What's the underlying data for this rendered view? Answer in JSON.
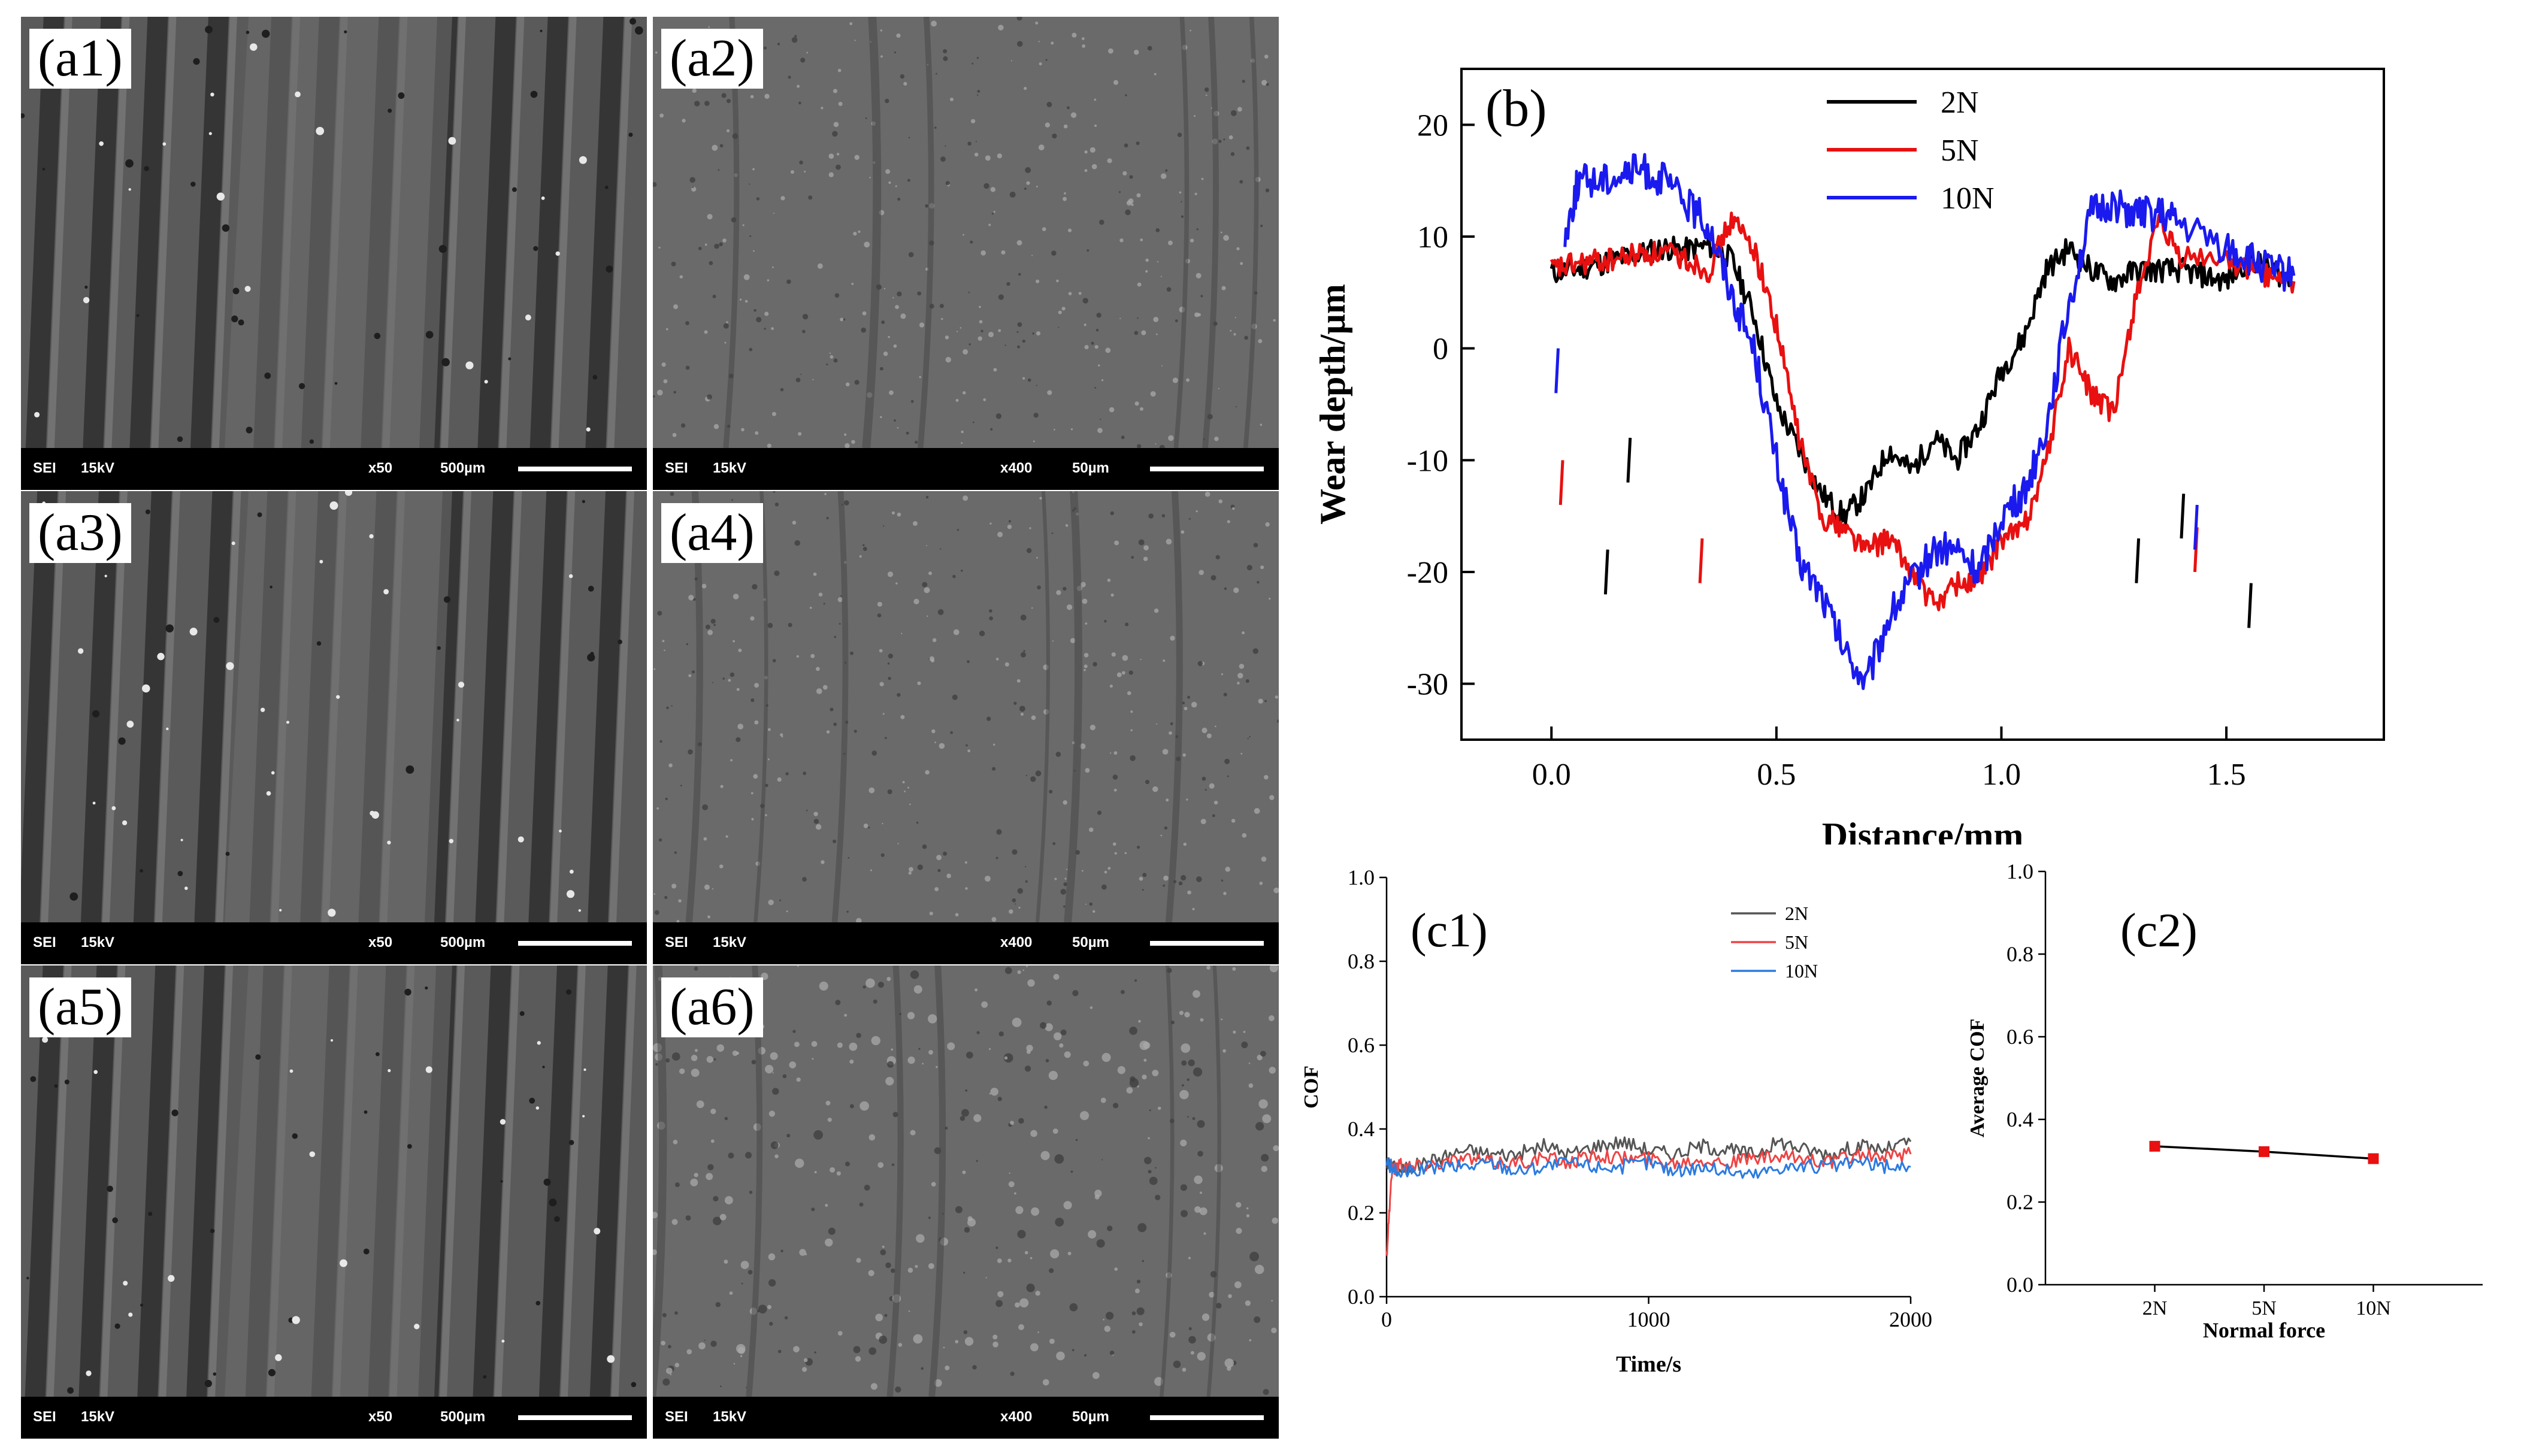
{
  "sem_panels": [
    {
      "label": "(a1)",
      "mode": "SEI",
      "voltage": "15kV",
      "mag": "x50",
      "scale": "500µm"
    },
    {
      "label": "(a2)",
      "mode": "SEI",
      "voltage": "15kV",
      "mag": "x400",
      "scale": "50µm"
    },
    {
      "label": "(a3)",
      "mode": "SEI",
      "voltage": "15kV",
      "mag": "x50",
      "scale": "500µm"
    },
    {
      "label": "(a4)",
      "mode": "SEI",
      "voltage": "15kV",
      "mag": "x400",
      "scale": "50µm"
    },
    {
      "label": "(a5)",
      "mode": "SEI",
      "voltage": "15kV",
      "mag": "x50",
      "scale": "500µm"
    },
    {
      "label": "(a6)",
      "mode": "SEI",
      "voltage": "15kV",
      "mag": "x400",
      "scale": "50µm"
    }
  ],
  "chart_data": [
    {
      "panel": "(b)",
      "type": "line",
      "xlabel": "Distance/mm",
      "ylabel": "Wear depth/µm",
      "xlim": [
        -0.2,
        1.85
      ],
      "ylim": [
        -35,
        25
      ],
      "xticks": [
        0.0,
        0.5,
        1.0,
        1.5
      ],
      "xtick_labels": [
        "0.0",
        "0.5",
        "1.0",
        "1.5"
      ],
      "yticks": [
        -30,
        -20,
        -10,
        0,
        10,
        20
      ],
      "ytick_labels": [
        "-30",
        "-20",
        "-10",
        "0",
        "10",
        "20"
      ],
      "legend": "top-center",
      "series": [
        {
          "name": "2N",
          "color": "#000000",
          "x": [
            0,
            0.05,
            0.1,
            0.15,
            0.2,
            0.25,
            0.3,
            0.35,
            0.4,
            0.45,
            0.5,
            0.55,
            0.6,
            0.65,
            0.7,
            0.75,
            0.8,
            0.85,
            0.9,
            0.95,
            1.0,
            1.05,
            1.1,
            1.15,
            1.2,
            1.25,
            1.3,
            1.35,
            1.4,
            1.45,
            1.5,
            1.55,
            1.6,
            1.65
          ],
          "y": [
            6.8,
            7,
            7.5,
            8,
            8.5,
            9,
            8.8,
            9.2,
            8,
            3,
            -5,
            -9,
            -13,
            -15,
            -13,
            -9,
            -11,
            -8,
            -10,
            -7,
            -2,
            1,
            7,
            9,
            7,
            6,
            7,
            7,
            7,
            6.5,
            6,
            8,
            7,
            6
          ]
        },
        {
          "name": "5N",
          "color": "#e81010",
          "x": [
            0,
            0.05,
            0.1,
            0.15,
            0.2,
            0.25,
            0.3,
            0.35,
            0.4,
            0.45,
            0.5,
            0.55,
            0.6,
            0.65,
            0.7,
            0.75,
            0.8,
            0.85,
            0.9,
            0.95,
            1.0,
            1.05,
            1.1,
            1.15,
            1.2,
            1.25,
            1.3,
            1.35,
            1.4,
            1.5,
            1.55,
            1.6,
            1.65
          ],
          "y": [
            7,
            7.5,
            7.8,
            8,
            8.5,
            8.5,
            8,
            7,
            11.5,
            9,
            2,
            -8,
            -15,
            -16,
            -18,
            -17,
            -20,
            -23,
            -21,
            -21,
            -17,
            -16,
            -10,
            0,
            -4,
            -6,
            5,
            11,
            8,
            8,
            7,
            6.5,
            6
          ]
        },
        {
          "name": "10N",
          "color": "#1a1aee",
          "x": [
            0.03,
            0.06,
            0.1,
            0.15,
            0.2,
            0.25,
            0.3,
            0.35,
            0.4,
            0.45,
            0.5,
            0.55,
            0.6,
            0.65,
            0.7,
            0.75,
            0.8,
            0.85,
            0.9,
            0.95,
            1.0,
            1.05,
            1.1,
            1.15,
            1.2,
            1.25,
            1.3,
            1.35,
            1.4,
            1.5,
            1.55,
            1.6,
            1.65
          ],
          "y": [
            10,
            15,
            15,
            15.5,
            16,
            15,
            13,
            11,
            5,
            0,
            -10,
            -19,
            -22,
            -27,
            -30,
            -24,
            -21,
            -18,
            -18,
            -20,
            -15,
            -13,
            -7,
            4,
            12,
            13,
            12,
            12,
            11,
            9,
            8,
            7,
            6.5
          ]
        }
      ]
    },
    {
      "panel": "(c1)",
      "type": "line",
      "xlabel": "Time/s",
      "ylabel": "COF",
      "xlim": [
        0,
        2000
      ],
      "ylim": [
        0,
        1.0
      ],
      "xticks": [
        0,
        1000,
        2000
      ],
      "xtick_labels": [
        "0",
        "1000",
        "2000"
      ],
      "yticks": [
        0,
        0.2,
        0.4,
        0.6,
        0.8,
        1.0
      ],
      "ytick_labels": [
        "0.0",
        "0.2",
        "0.4",
        "0.6",
        "0.8",
        "1.0"
      ],
      "legend": "top-right",
      "series": [
        {
          "name": "2N",
          "color": "#555555",
          "x": [
            0,
            50,
            100,
            200,
            300,
            400,
            500,
            600,
            700,
            800,
            900,
            1000,
            1100,
            1200,
            1300,
            1400,
            1500,
            1600,
            1700,
            1800,
            1900,
            2000
          ],
          "y": [
            0.32,
            0.3,
            0.31,
            0.33,
            0.35,
            0.34,
            0.34,
            0.36,
            0.34,
            0.36,
            0.37,
            0.35,
            0.34,
            0.36,
            0.35,
            0.34,
            0.37,
            0.35,
            0.34,
            0.36,
            0.35,
            0.37
          ]
        },
        {
          "name": "5N",
          "color": "#ee4444",
          "x": [
            0,
            20,
            50,
            100,
            200,
            300,
            400,
            500,
            600,
            700,
            800,
            900,
            1000,
            1100,
            1200,
            1300,
            1400,
            1500,
            1600,
            1700,
            1800,
            1900,
            2000
          ],
          "y": [
            0.1,
            0.3,
            0.32,
            0.31,
            0.32,
            0.33,
            0.32,
            0.32,
            0.33,
            0.32,
            0.34,
            0.33,
            0.33,
            0.32,
            0.33,
            0.32,
            0.33,
            0.33,
            0.33,
            0.32,
            0.34,
            0.33,
            0.34
          ]
        },
        {
          "name": "10N",
          "color": "#2b7be0",
          "x": [
            0,
            50,
            100,
            200,
            300,
            400,
            500,
            600,
            700,
            800,
            900,
            1000,
            1100,
            1200,
            1300,
            1400,
            1500,
            1600,
            1700,
            1800,
            1900,
            2000
          ],
          "y": [
            0.32,
            0.29,
            0.3,
            0.31,
            0.31,
            0.32,
            0.3,
            0.31,
            0.32,
            0.31,
            0.31,
            0.32,
            0.3,
            0.31,
            0.3,
            0.29,
            0.31,
            0.31,
            0.31,
            0.32,
            0.31,
            0.31
          ]
        }
      ]
    },
    {
      "panel": "(c2)",
      "type": "line",
      "xlabel": "Normal force",
      "ylabel": "Average COF",
      "categories": [
        "2N",
        "5N",
        "10N"
      ],
      "ylim": [
        0,
        1.0
      ],
      "yticks": [
        0,
        0.2,
        0.4,
        0.6,
        0.8,
        1.0
      ],
      "ytick_labels": [
        "0.0",
        "0.2",
        "0.4",
        "0.6",
        "0.8",
        "1.0"
      ],
      "series": [
        {
          "name": "Average COF",
          "color": "#000000",
          "marker_color": "#e81010",
          "values": [
            0.335,
            0.322,
            0.305
          ]
        }
      ]
    }
  ]
}
